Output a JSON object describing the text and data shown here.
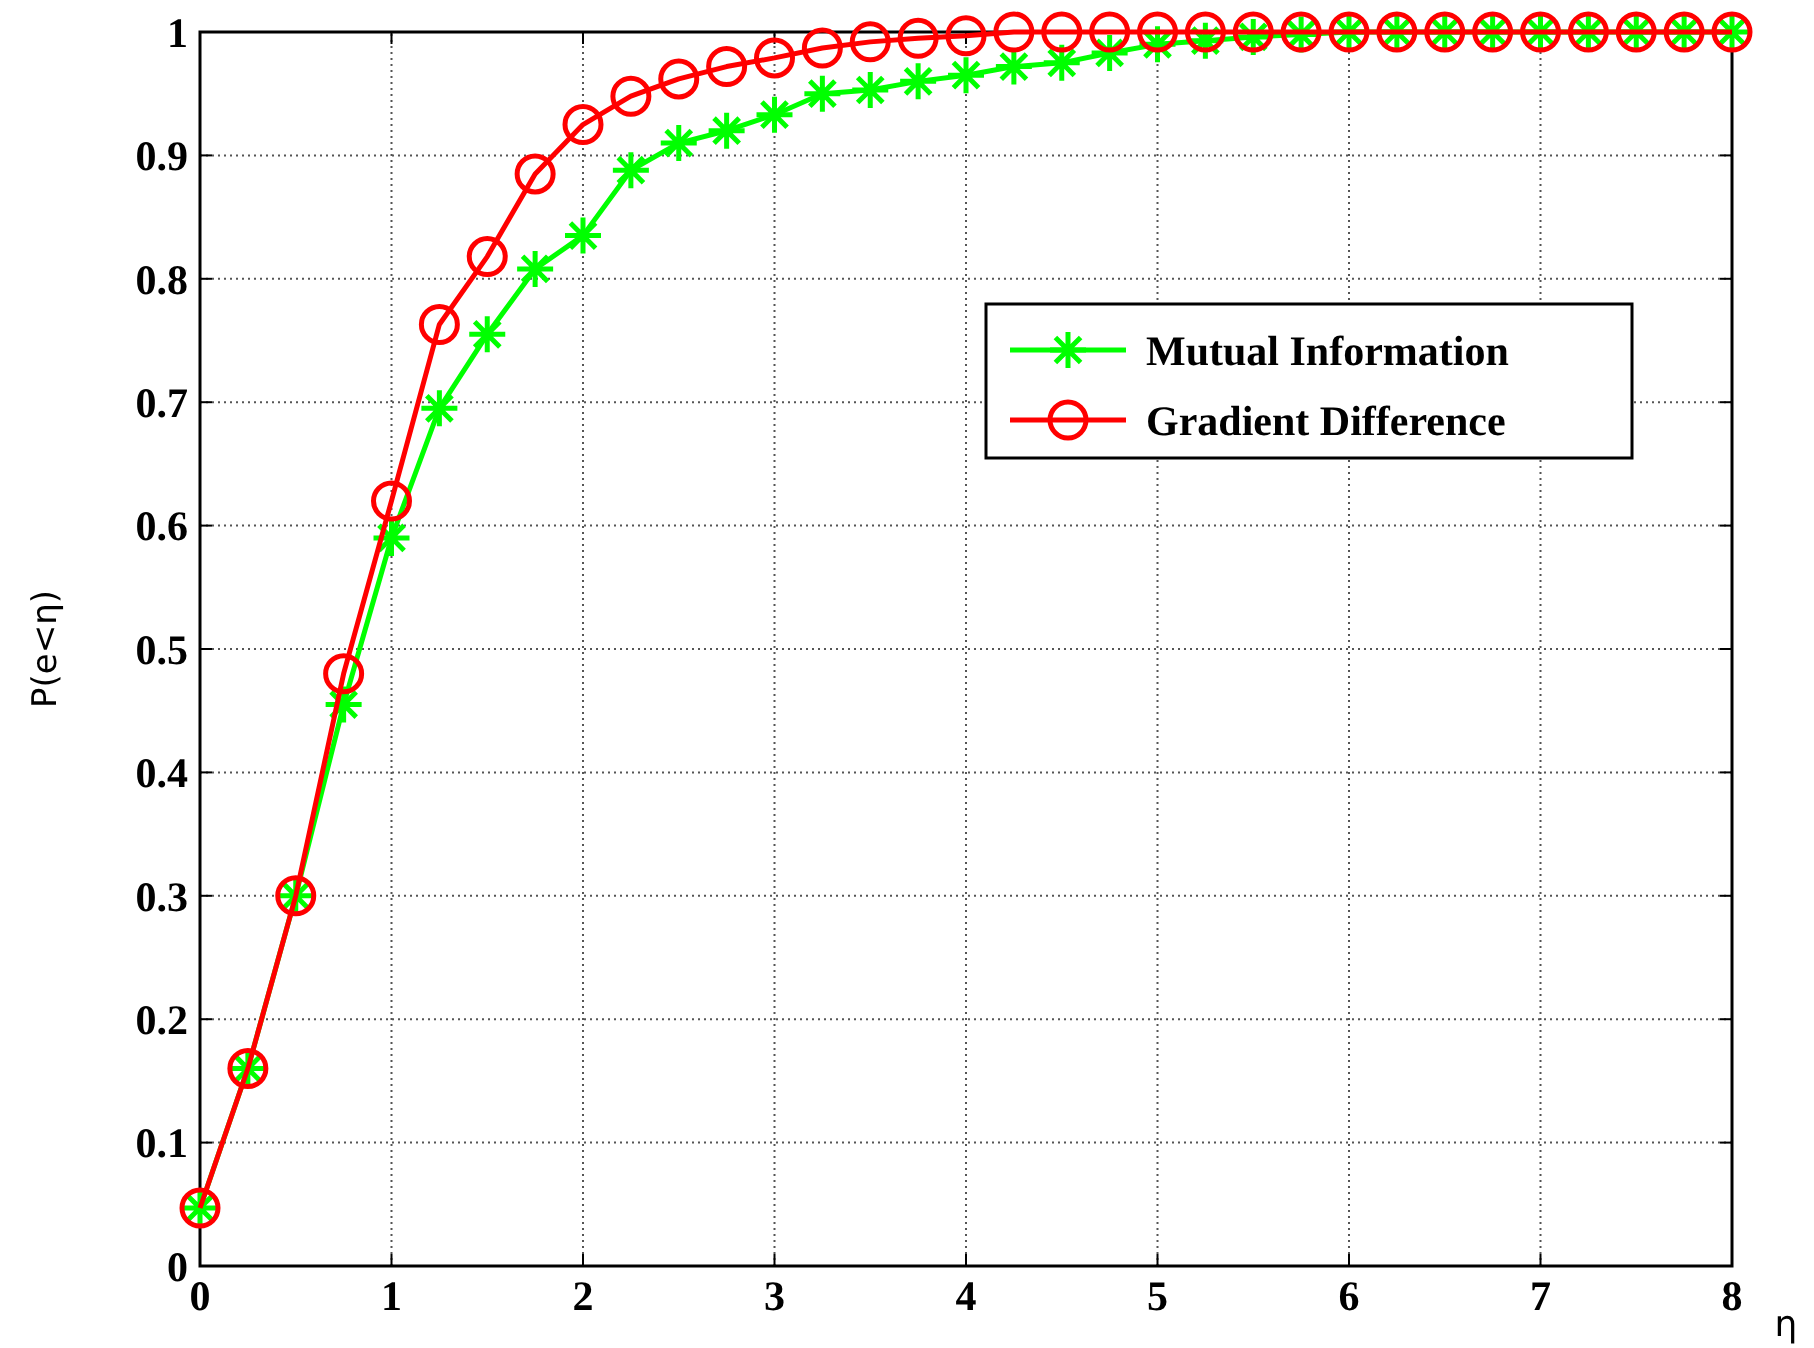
{
  "chart_data": {
    "type": "line",
    "xlabel": "η",
    "ylabel": "P(e<η)",
    "x": [
      0,
      0.25,
      0.5,
      0.75,
      1,
      1.25,
      1.5,
      1.75,
      2,
      2.25,
      2.5,
      2.75,
      3,
      3.25,
      3.5,
      3.75,
      4,
      4.25,
      4.5,
      4.75,
      5,
      5.25,
      5.5,
      5.75,
      6,
      6.25,
      6.5,
      6.75,
      7,
      7.25,
      7.5,
      7.75,
      8
    ],
    "series": [
      {
        "name": "Mutual Information",
        "color": "#00ff00",
        "marker": "cross",
        "values": [
          0.047,
          0.16,
          0.3,
          0.455,
          0.59,
          0.695,
          0.755,
          0.808,
          0.835,
          0.888,
          0.91,
          0.92,
          0.933,
          0.95,
          0.953,
          0.96,
          0.965,
          0.972,
          0.975,
          0.983,
          0.99,
          0.993,
          0.996,
          0.998,
          1,
          1,
          1,
          1,
          1,
          1,
          1,
          1,
          1
        ]
      },
      {
        "name": "Gradient Difference",
        "color": "#ff0000",
        "marker": "circle",
        "values": [
          0.047,
          0.16,
          0.3,
          0.48,
          0.62,
          0.763,
          0.818,
          0.885,
          0.925,
          0.948,
          0.962,
          0.972,
          0.979,
          0.987,
          0.992,
          0.995,
          0.997,
          1,
          1,
          1,
          1,
          1,
          1,
          1,
          1,
          1,
          1,
          1,
          1,
          1,
          1,
          1,
          1
        ]
      }
    ],
    "xlim": [
      0,
      8
    ],
    "xticks": [
      0,
      1,
      2,
      3,
      4,
      5,
      6,
      7,
      8
    ],
    "ylim": [
      0,
      1
    ],
    "yticks": [
      0,
      0.1,
      0.2,
      0.3,
      0.4,
      0.5,
      0.6,
      0.7,
      0.8,
      0.9,
      1
    ],
    "grid": true,
    "legend": "top right",
    "line_style": "solid"
  }
}
